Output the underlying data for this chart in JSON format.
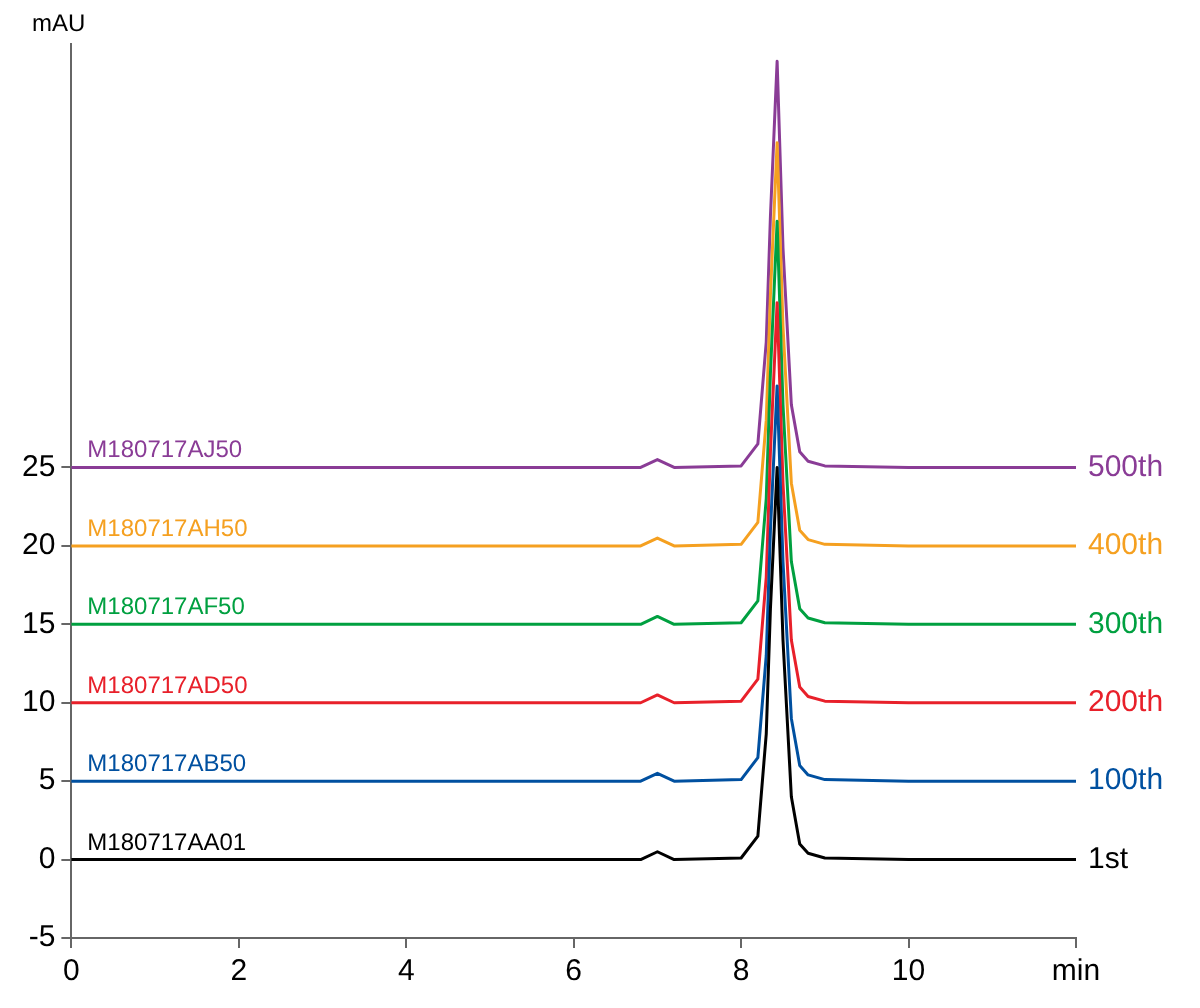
{
  "chart_data": {
    "type": "line",
    "ylabel": "mAU",
    "x": [
      0,
      1,
      2,
      3,
      4,
      5,
      6,
      6.8,
      7.0,
      7.2,
      8.0,
      8.2,
      8.3,
      8.35,
      8.43,
      8.5,
      8.6,
      8.7,
      8.8,
      9.0,
      10,
      11,
      12
    ],
    "series": [
      {
        "name": "M180717AA01",
        "color": "#000000",
        "values": [
          0,
          0,
          0,
          0,
          0,
          0,
          0,
          0,
          0.5,
          0,
          0.1,
          1.5,
          8,
          16,
          25,
          14,
          4,
          1,
          0.4,
          0.1,
          0,
          0,
          0
        ]
      },
      {
        "name": "M180717AB50",
        "color": "#0050a0",
        "values": [
          5,
          5,
          5,
          5,
          5,
          5,
          5,
          5,
          5.5,
          5,
          5.1,
          6.5,
          13,
          21,
          30.2,
          19,
          9,
          6,
          5.4,
          5.1,
          5,
          5,
          5
        ]
      },
      {
        "name": "M180717AD50",
        "color": "#e8202a",
        "values": [
          10,
          10,
          10,
          10,
          10,
          10,
          10,
          10,
          10.5,
          10,
          10.1,
          11.5,
          18,
          26,
          35.5,
          24,
          14,
          11,
          10.4,
          10.1,
          10,
          10,
          10
        ]
      },
      {
        "name": "M180717AF50",
        "color": "#00a040",
        "values": [
          15,
          15,
          15,
          15,
          15,
          15,
          15,
          15,
          15.5,
          15,
          15.1,
          16.5,
          23,
          31,
          40.7,
          29,
          19,
          16,
          15.4,
          15.1,
          15,
          15,
          15
        ]
      },
      {
        "name": "M180717AH50",
        "color": "#f5a020",
        "values": [
          20,
          20,
          20,
          20,
          20,
          20,
          20,
          20,
          20.5,
          20,
          20.1,
          21.5,
          28,
          36,
          45.7,
          34,
          24,
          21,
          20.4,
          20.1,
          20,
          20,
          20
        ]
      },
      {
        "name": "M180717AJ50",
        "color": "#8a3c96",
        "values": [
          25,
          25,
          25,
          25,
          25,
          25,
          25,
          25,
          25.5,
          25,
          25.1,
          26.5,
          33,
          41,
          50.9,
          39,
          29,
          26,
          25.4,
          25.1,
          25,
          25,
          25
        ]
      }
    ],
    "annotations": [
      "1st",
      "100th",
      "200th",
      "300th",
      "400th",
      "500th"
    ],
    "xlim": [
      0,
      12
    ],
    "xticks": [
      0,
      2,
      4,
      6,
      8,
      10,
      {
        "value": 12,
        "label": "min"
      }
    ],
    "ylim": [
      -5,
      52
    ],
    "yticks": [
      -5,
      0,
      5,
      10,
      15,
      20,
      25
    ],
    "grid": false,
    "legend": false,
    "marker": "none",
    "line_style": "solid"
  }
}
